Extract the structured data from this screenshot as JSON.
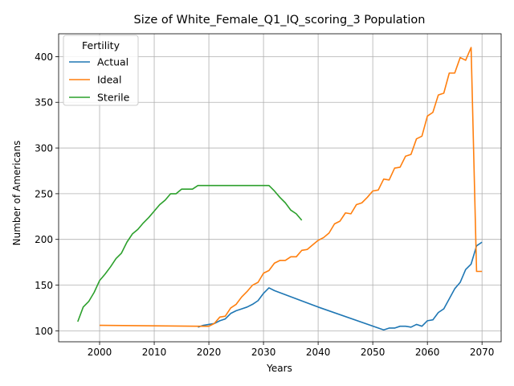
{
  "chart_data": {
    "type": "line",
    "title": "Size of White_Female_Q1_IQ_scoring_3 Population",
    "xlabel": "Years",
    "ylabel": "Number of Americans",
    "xlim": [
      1992.5,
      2073.5
    ],
    "ylim": [
      88,
      425
    ],
    "xticks": [
      2000,
      2010,
      2020,
      2030,
      2040,
      2050,
      2060,
      2070
    ],
    "yticks": [
      100,
      150,
      200,
      250,
      300,
      350,
      400
    ],
    "grid": true,
    "legend": {
      "title": "Fertility",
      "placement": "top-left"
    },
    "series": [
      {
        "name": "Actual",
        "color": "#1f77b4",
        "points": [
          [
            2018,
            104
          ],
          [
            2019,
            106
          ],
          [
            2020,
            107
          ],
          [
            2021,
            108
          ],
          [
            2022,
            111
          ],
          [
            2023,
            113
          ],
          [
            2024,
            119
          ],
          [
            2025,
            122
          ],
          [
            2026,
            124
          ],
          [
            2027,
            126
          ],
          [
            2028,
            129
          ],
          [
            2029,
            133
          ],
          [
            2030,
            141
          ],
          [
            2031,
            147
          ],
          [
            2032,
            144
          ],
          [
            2040,
            126
          ],
          [
            2052,
            101
          ],
          [
            2053,
            103
          ],
          [
            2054,
            103
          ],
          [
            2055,
            105
          ],
          [
            2056,
            105
          ],
          [
            2057,
            104
          ],
          [
            2058,
            107
          ],
          [
            2059,
            105
          ],
          [
            2060,
            111
          ],
          [
            2061,
            112
          ],
          [
            2062,
            120
          ],
          [
            2063,
            124
          ],
          [
            2064,
            135
          ],
          [
            2065,
            146
          ],
          [
            2066,
            153
          ],
          [
            2067,
            167
          ],
          [
            2068,
            173
          ],
          [
            2069,
            193
          ],
          [
            2070,
            197
          ]
        ]
      },
      {
        "name": "Ideal",
        "color": "#ff7f0e",
        "points": [
          [
            2000,
            106
          ],
          [
            2018,
            105
          ],
          [
            2019,
            105
          ],
          [
            2020,
            105
          ],
          [
            2021,
            108
          ],
          [
            2022,
            115
          ],
          [
            2023,
            116
          ],
          [
            2024,
            125
          ],
          [
            2025,
            129
          ],
          [
            2026,
            137
          ],
          [
            2027,
            143
          ],
          [
            2028,
            150
          ],
          [
            2029,
            153
          ],
          [
            2030,
            163
          ],
          [
            2031,
            166
          ],
          [
            2032,
            174
          ],
          [
            2033,
            177
          ],
          [
            2034,
            177
          ],
          [
            2035,
            181
          ],
          [
            2036,
            181
          ],
          [
            2037,
            188
          ],
          [
            2038,
            189
          ],
          [
            2039,
            194
          ],
          [
            2040,
            199
          ],
          [
            2041,
            202
          ],
          [
            2042,
            207
          ],
          [
            2043,
            217
          ],
          [
            2044,
            220
          ],
          [
            2045,
            229
          ],
          [
            2046,
            228
          ],
          [
            2047,
            238
          ],
          [
            2048,
            240
          ],
          [
            2049,
            246
          ],
          [
            2050,
            253
          ],
          [
            2051,
            254
          ],
          [
            2052,
            266
          ],
          [
            2053,
            265
          ],
          [
            2054,
            278
          ],
          [
            2055,
            279
          ],
          [
            2056,
            291
          ],
          [
            2057,
            293
          ],
          [
            2058,
            310
          ],
          [
            2059,
            313
          ],
          [
            2060,
            335
          ],
          [
            2061,
            339
          ],
          [
            2062,
            358
          ],
          [
            2063,
            360
          ],
          [
            2064,
            382
          ],
          [
            2065,
            382
          ],
          [
            2066,
            399
          ],
          [
            2067,
            396
          ],
          [
            2068,
            410
          ],
          [
            2069,
            165
          ],
          [
            2070,
            165
          ]
        ]
      },
      {
        "name": "Sterile",
        "color": "#2ca02c",
        "points": [
          [
            1996,
            110
          ],
          [
            1997,
            126
          ],
          [
            1998,
            132
          ],
          [
            1999,
            142
          ],
          [
            2000,
            155
          ],
          [
            2001,
            162
          ],
          [
            2002,
            170
          ],
          [
            2003,
            179
          ],
          [
            2004,
            185
          ],
          [
            2005,
            197
          ],
          [
            2006,
            206
          ],
          [
            2007,
            211
          ],
          [
            2008,
            218
          ],
          [
            2009,
            224
          ],
          [
            2010,
            231
          ],
          [
            2011,
            238
          ],
          [
            2012,
            243
          ],
          [
            2013,
            250
          ],
          [
            2014,
            250
          ],
          [
            2015,
            255
          ],
          [
            2016,
            255
          ],
          [
            2017,
            255
          ],
          [
            2018,
            259
          ],
          [
            2020,
            259
          ],
          [
            2031,
            259
          ],
          [
            2032,
            253
          ],
          [
            2033,
            246
          ],
          [
            2034,
            240
          ],
          [
            2035,
            232
          ],
          [
            2036,
            228
          ],
          [
            2037,
            221
          ]
        ]
      }
    ]
  }
}
